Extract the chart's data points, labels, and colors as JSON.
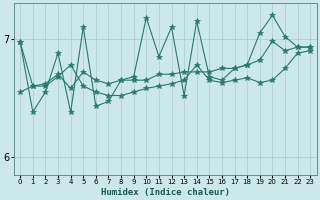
{
  "xlabel": "Humidex (Indice chaleur)",
  "ylabel": "",
  "bg_color": "#cce8ea",
  "grid_color": "#b0d0d3",
  "line_color": "#2a7a6a",
  "spine_color": "#5a9090",
  "xlim": [
    -0.5,
    23.5
  ],
  "ylim": [
    5.85,
    7.3
  ],
  "yticks": [
    6,
    7
  ],
  "xticks": [
    0,
    1,
    2,
    3,
    4,
    5,
    6,
    7,
    8,
    9,
    10,
    11,
    12,
    13,
    14,
    15,
    16,
    17,
    18,
    19,
    20,
    21,
    22,
    23
  ],
  "series": [
    [
      6.97,
      6.6,
      6.6,
      6.68,
      6.78,
      6.6,
      6.55,
      6.52,
      6.52,
      6.55,
      6.58,
      6.6,
      6.62,
      6.65,
      6.78,
      6.65,
      6.63,
      6.65,
      6.67,
      6.63,
      6.65,
      6.75,
      6.88,
      6.9
    ],
    [
      6.55,
      6.6,
      6.62,
      6.7,
      6.58,
      6.72,
      6.65,
      6.62,
      6.65,
      6.65,
      6.65,
      6.7,
      6.7,
      6.72,
      6.72,
      6.72,
      6.75,
      6.75,
      6.78,
      6.82,
      6.98,
      6.9,
      6.93,
      6.93
    ],
    [
      6.97,
      6.38,
      6.55,
      6.88,
      6.38,
      7.1,
      6.43,
      6.47,
      6.65,
      6.68,
      7.18,
      6.85,
      7.1,
      6.52,
      7.15,
      6.68,
      6.65,
      6.75,
      6.78,
      7.05,
      7.2,
      7.02,
      6.93,
      6.93
    ]
  ],
  "marker": "*",
  "linewidth": 0.8,
  "markersize": 4.0
}
